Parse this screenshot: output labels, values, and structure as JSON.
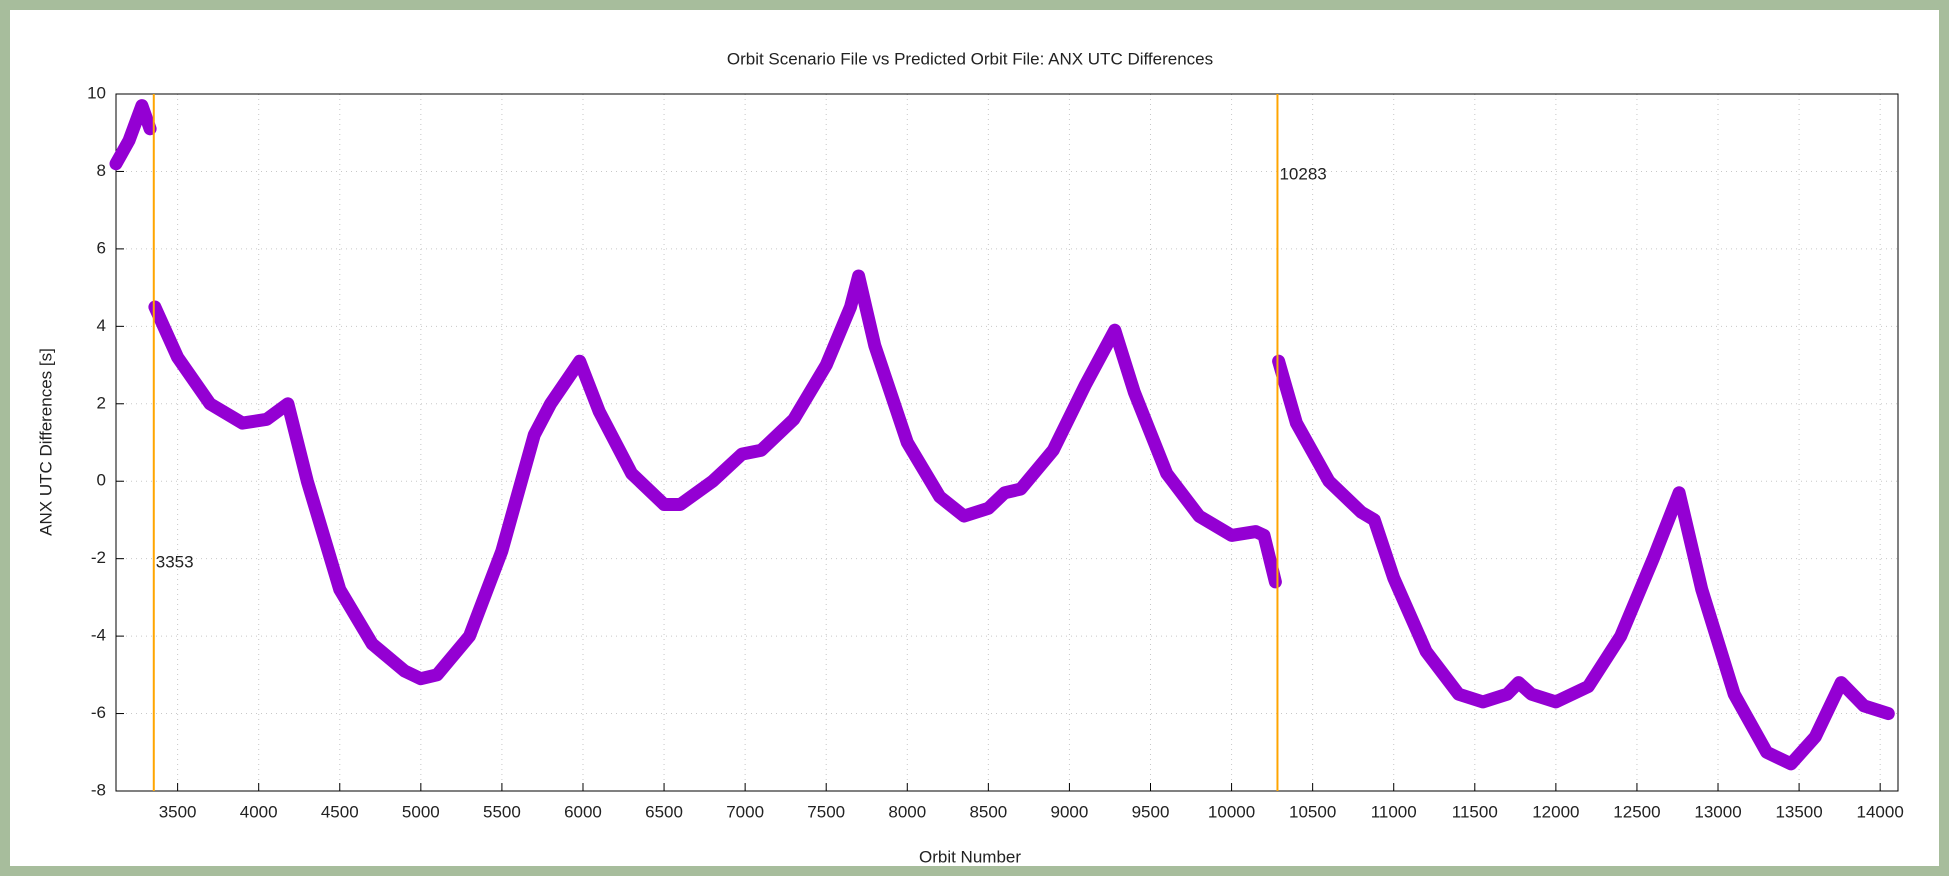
{
  "chart_data": {
    "type": "line",
    "title": "Orbit Scenario File vs Predicted Orbit File: ANX UTC Differences",
    "x_label": "Orbit Number",
    "y_label": "ANX UTC Differences [s]",
    "xlim": [
      3120,
      14110
    ],
    "ylim": [
      -8,
      10
    ],
    "xticks": [
      3500,
      4000,
      4500,
      5000,
      5500,
      6000,
      6500,
      7000,
      7500,
      8000,
      8500,
      9000,
      9500,
      10000,
      10500,
      11000,
      11500,
      12000,
      12500,
      13000,
      13500,
      14000
    ],
    "yticks": [
      -8,
      -6,
      -4,
      -2,
      0,
      2,
      4,
      6,
      8,
      10
    ],
    "grid": true,
    "vlines": [
      3353,
      10283
    ],
    "vline_color": "#ffa500",
    "x": [
      3120,
      3200,
      3280,
      3330,
      3353,
      3360,
      3500,
      3700,
      3900,
      4050,
      4180,
      4300,
      4500,
      4700,
      4900,
      5000,
      5100,
      5300,
      5500,
      5700,
      5800,
      5980,
      6100,
      6300,
      6500,
      6600,
      6800,
      6980,
      7100,
      7300,
      7500,
      7650,
      7700,
      7800,
      8000,
      8200,
      8350,
      8500,
      8600,
      8700,
      8900,
      9100,
      9280,
      9400,
      9600,
      9800,
      10000,
      10150,
      10200,
      10270,
      10283,
      10290,
      10400,
      10600,
      10800,
      10880,
      11000,
      11200,
      11400,
      11550,
      11700,
      11770,
      11850,
      12000,
      12200,
      12400,
      12600,
      12760,
      12900,
      13100,
      13300,
      13450,
      13600,
      13760,
      13900,
      14050
    ],
    "series": [
      {
        "color": "#9400d3",
        "values": [
          8.2,
          8.8,
          9.7,
          9.1,
          null,
          4.5,
          3.2,
          2.0,
          1.5,
          1.6,
          2.0,
          0.0,
          -2.8,
          -4.2,
          -4.9,
          -5.1,
          -5.0,
          -4.0,
          -1.8,
          1.2,
          2.0,
          3.1,
          1.8,
          0.2,
          -0.6,
          -0.6,
          0.0,
          0.7,
          0.8,
          1.6,
          3.0,
          4.5,
          5.3,
          3.5,
          1.0,
          -0.4,
          -0.9,
          -0.7,
          -0.3,
          -0.2,
          0.8,
          2.5,
          3.9,
          2.3,
          0.2,
          -0.9,
          -1.4,
          -1.3,
          -1.4,
          -2.6,
          null,
          3.1,
          1.5,
          0.0,
          -0.8,
          -1.0,
          -2.5,
          -4.4,
          -5.5,
          -5.7,
          -5.5,
          -5.2,
          -5.5,
          -5.7,
          -5.3,
          -4.0,
          -2.0,
          -0.3,
          -2.8,
          -5.5,
          -7.0,
          -7.3,
          -6.6,
          -5.2,
          -5.8,
          -6.0
        ]
      }
    ]
  }
}
